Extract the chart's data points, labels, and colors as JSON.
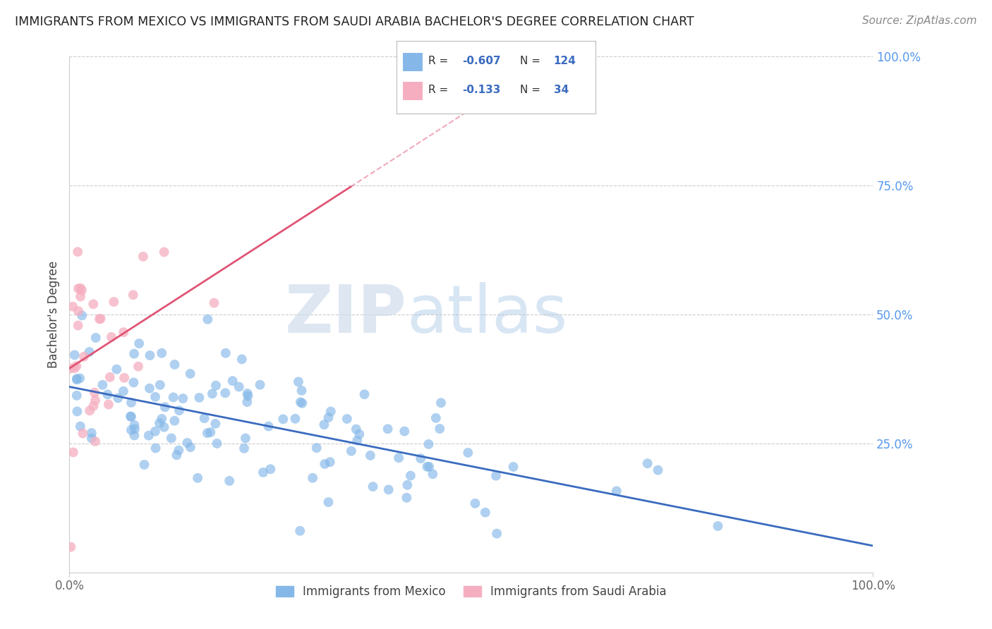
{
  "title": "IMMIGRANTS FROM MEXICO VS IMMIGRANTS FROM SAUDI ARABIA BACHELOR'S DEGREE CORRELATION CHART",
  "source": "Source: ZipAtlas.com",
  "ylabel": "Bachelor's Degree",
  "xlim": [
    0.0,
    1.0
  ],
  "ylim": [
    0.0,
    1.0
  ],
  "mexico_color": "#85b8e8",
  "saudi_color": "#f5aec0",
  "mexico_line_color": "#3a6bbf",
  "saudi_line_color": "#e05575",
  "mexico_R": -0.607,
  "mexico_N": 124,
  "saudi_R": -0.133,
  "saudi_N": 34,
  "legend_label_mexico": "Immigrants from Mexico",
  "legend_label_saudi": "Immigrants from Saudi Arabia",
  "watermark_zip": "ZIP",
  "watermark_atlas": "atlas",
  "background_color": "#ffffff",
  "grid_color": "#cccccc",
  "ytick_color": "#5599ee",
  "xtick_color": "#666666"
}
